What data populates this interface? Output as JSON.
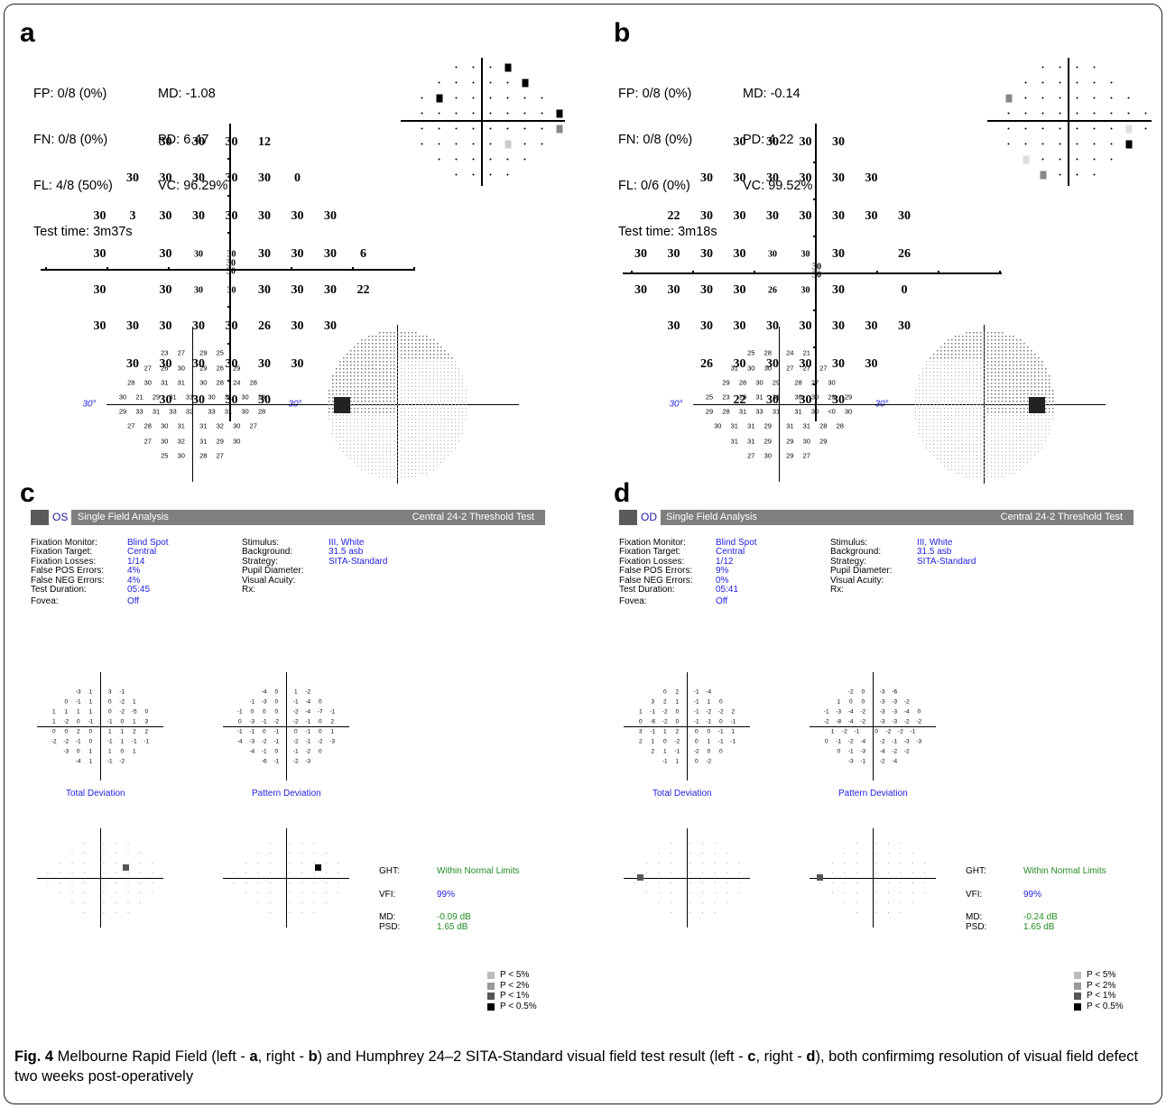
{
  "figure": {
    "caption_label": "Fig. 4",
    "caption_parts": [
      {
        "text": " Melbourne Rapid Field (left - ",
        "bold": false
      },
      {
        "text": "a",
        "bold": true
      },
      {
        "text": ", right - ",
        "bold": false
      },
      {
        "text": "b",
        "bold": true
      },
      {
        "text": ") and Humphrey 24–2 SITA-Standard visual field test result (left - ",
        "bold": false
      },
      {
        "text": "c",
        "bold": true
      },
      {
        "text": ", right - ",
        "bold": false
      },
      {
        "text": "d",
        "bold": true
      },
      {
        "text": "), both confirmimg resolution of visual field defect two weeks post-operatively",
        "bold": false
      }
    ]
  },
  "panel_a": {
    "label": "a",
    "fp": "FP: 0/8 (0%)",
    "fn": "FN: 0/8 (0%)",
    "fl": "FL: 4/8 (50%)",
    "time": "Test time: 3m37s",
    "md": "MD: -1.08",
    "pd": "PD: 6.47",
    "vc": "VC: 96.29%",
    "rows": [
      [
        "",
        "",
        "",
        "30",
        "30",
        "30",
        "12",
        "",
        "",
        ""
      ],
      [
        "",
        "",
        "30",
        "30",
        "30",
        "30",
        "30",
        "0",
        "",
        ""
      ],
      [
        "",
        "30",
        "3",
        "30",
        "30",
        "30",
        "30",
        "30",
        "30",
        ""
      ],
      [
        "",
        "30",
        "",
        "30",
        "30",
        "30",
        "30",
        "30",
        "30",
        "6"
      ],
      [
        "",
        "30",
        "",
        "30",
        "30",
        "30",
        "30",
        "30",
        "30",
        "22"
      ],
      [
        "",
        "30",
        "30",
        "30",
        "30",
        "30",
        "26",
        "30",
        "30",
        ""
      ],
      [
        "",
        "",
        "30",
        "30",
        "30",
        "30",
        "30",
        "30",
        "",
        ""
      ],
      [
        "",
        "",
        "",
        "30",
        "30",
        "30",
        "30",
        "",
        "",
        ""
      ]
    ],
    "center": [
      "30",
      "30"
    ]
  },
  "panel_b": {
    "label": "b",
    "fp": "FP: 0/8 (0%)",
    "fn": "FN: 0/8 (0%)",
    "fl": "FL: 0/6 (0%)",
    "time": "Test time: 3m18s",
    "md": "MD: -0.14",
    "pd": "PD: 4.22",
    "vc": "VC: 99.52%",
    "rows": [
      [
        "",
        "",
        "",
        "30",
        "30",
        "30",
        "30",
        "",
        "",
        ""
      ],
      [
        "",
        "",
        "30",
        "30",
        "30",
        "30",
        "30",
        "30",
        "",
        ""
      ],
      [
        "",
        "22",
        "30",
        "30",
        "30",
        "30",
        "30",
        "30",
        "30",
        ""
      ],
      [
        "30",
        "30",
        "30",
        "30",
        "30",
        "30",
        "30",
        "",
        "26",
        ""
      ],
      [
        "30",
        "30",
        "30",
        "30",
        "26",
        "30",
        "30",
        "",
        "0",
        ""
      ],
      [
        "",
        "30",
        "30",
        "30",
        "30",
        "30",
        "30",
        "30",
        "30",
        ""
      ],
      [
        "",
        "",
        "26",
        "30",
        "30",
        "30",
        "30",
        "30",
        "",
        ""
      ],
      [
        "",
        "",
        "",
        "22",
        "30",
        "30",
        "30",
        "",
        "",
        ""
      ]
    ],
    "center": [
      "30",
      "30"
    ]
  },
  "panel_c": {
    "label": "c",
    "eye": "OS",
    "title": "Single Field Analysis",
    "test": "Central 24-2 Threshold Test",
    "info_left": [
      [
        "Fixation Monitor:",
        "Blind Spot"
      ],
      [
        "Fixation Target:",
        "Central"
      ],
      [
        "Fixation Losses:",
        "1/14"
      ],
      [
        "False POS Errors:",
        "4%"
      ],
      [
        "False NEG Errors:",
        "4%"
      ],
      [
        "Test Duration:",
        "05:45"
      ],
      [
        "Fovea:",
        "Off"
      ]
    ],
    "info_right": [
      [
        "Stimulus:",
        "III, White"
      ],
      [
        "Background:",
        "31.5 asb"
      ],
      [
        "Strategy:",
        "SITA-Standard"
      ],
      [
        "Pupil Diameter:",
        ""
      ],
      [
        "Visual Acuity:",
        ""
      ],
      [
        "Rx:",
        ""
      ]
    ],
    "deg_label": "30°",
    "threshold_rows": [
      "23 27 29 25",
      "27 26 30 29 26 29",
      "28 30 31 31 30 28 24 28",
      "30 21 29 31 31 30 31 30 29",
      "29 33 31 33 32 33 31 30 28",
      "27 28 30 31 31 32 30 27",
      "27 30 32 31 29 30",
      "25 30 28 27"
    ],
    "total_dev_rows": [
      "-3 1 3 -1",
      "0 -1 1 0 -2 1",
      "1 1 1 1 0 -2 -5 0",
      "1 -2 0 -1 -1 0 1 3",
      "0 0 2 0 1 1 2 2",
      "-2 -2 -1 0 -1 1 -1 -1",
      "-3 0 1 1 0 1",
      "-4 1 -1 -2"
    ],
    "pattern_dev_rows": [
      "-4 0 1 -2",
      "-1 -3 0 -1 -4 0",
      "-1 0 0 0 -2 -4 -7 -1",
      "0 -3 -1 -2 -2 -1 0 2",
      "-1 -1 0 -1 0 -1 0 1",
      "-4 -3 -2 -1 -2 -1 -2 -3",
      "-4 -1 0 -1 -2 0",
      "-6 -1 -2 -3"
    ],
    "total_dev_label": "Total Deviation",
    "pattern_dev_label": "Pattern Deviation",
    "ght_label": "GHT:",
    "ght": "Within Normal Limits",
    "vfi_label": "VFI:",
    "vfi": "99%",
    "md_label": "MD:",
    "md": "-0.09 dB",
    "psd_label": "PSD:",
    "psd": "1.65 dB",
    "legend": [
      "P < 5%",
      "P < 2%",
      "P < 1%",
      "P < 0.5%"
    ]
  },
  "panel_d": {
    "label": "d",
    "eye": "OD",
    "title": "Single Field Analysis",
    "test": "Central 24-2 Threshold Test",
    "info_left": [
      [
        "Fixation Monitor:",
        "Blind Spot"
      ],
      [
        "Fixation Target:",
        "Central"
      ],
      [
        "Fixation Losses:",
        "1/12"
      ],
      [
        "False POS Errors:",
        "9%"
      ],
      [
        "False NEG Errors:",
        "0%"
      ],
      [
        "Test Duration:",
        "05:41"
      ],
      [
        "Fovea:",
        "Off"
      ]
    ],
    "info_right": [
      [
        "Stimulus:",
        "III, White"
      ],
      [
        "Background:",
        "31.5 asb"
      ],
      [
        "Strategy:",
        "SITA-Standard"
      ],
      [
        "Pupil Diameter:",
        ""
      ],
      [
        "Visual Acuity:",
        ""
      ],
      [
        "Rx:",
        ""
      ]
    ],
    "deg_label": "30°",
    "threshold_rows": [
      "25 28 24 21",
      "31 30 30 27 27 27",
      "29 28 30 29 28 27 30",
      "25 23 29 31 31 30 30 29 29",
      "29 28 31 33 31 31 30 <0 30",
      "30 31 31 29 31 31 28 28",
      "31 31 29 29 30 29",
      "27 30 29 27"
    ],
    "total_dev_rows": [
      "0 2 -1 -4",
      "3 2 1 -1 1 0",
      "1 -1 -2 0 -1 -2 -2 2",
      "0 -6 -2 0 -1 -1 0 -1",
      "3 -1 1 2 0 0 -1 1",
      "2 1 0 -2 0 1 -1 -1",
      "2 1 -1 -2 0 0",
      "-1 1 0 -2"
    ],
    "pattern_dev_rows": [
      "-2 0 -3 -6",
      "1 0 0 -3 -3 -2",
      "-1 -3 -4 -2 -3 -3 -4 0",
      "-2 -8 -4 -2 -3 -3 -2 -2",
      "1 -2 -1 0 -2 -2 -1",
      "0 -1 -2 -4 -2 -1 -3 -3",
      "0 -1 -3 -4 -2 -2",
      "-3 -1 -2 -4"
    ],
    "total_dev_label": "Total Deviation",
    "pattern_dev_label": "Pattern Deviation",
    "ght_label": "GHT:",
    "ght": "Within Normal Limits",
    "vfi_label": "VFI:",
    "vfi": "99%",
    "md_label": "MD:",
    "md": "-0.24 dB",
    "psd_label": "PSD:",
    "psd": "1.65 dB",
    "legend": [
      "P < 5%",
      "P < 2%",
      "P < 1%",
      "P < 0.5%"
    ]
  }
}
